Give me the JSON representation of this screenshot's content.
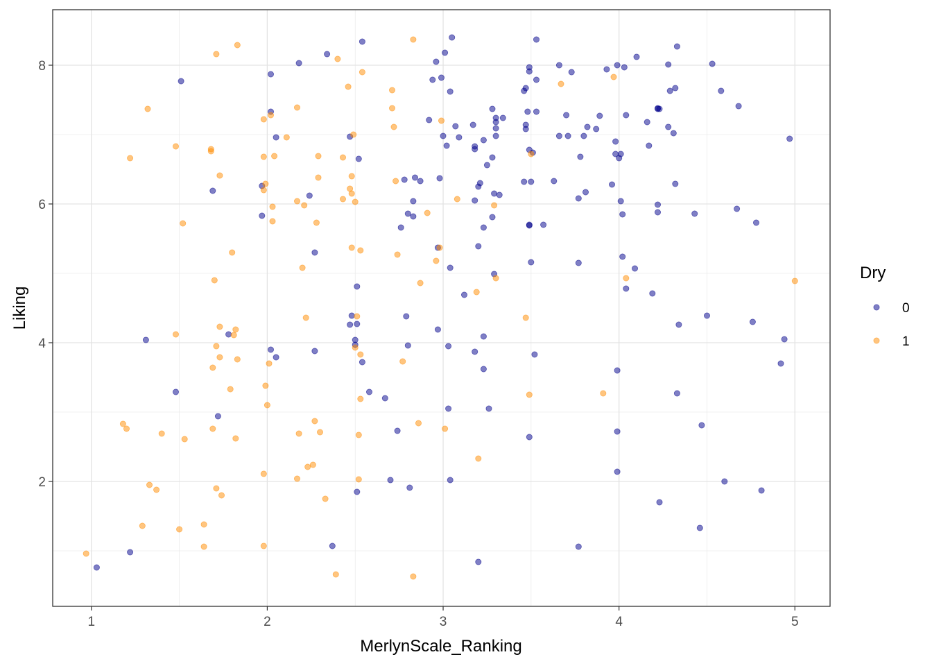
{
  "chart_data": {
    "type": "scatter",
    "xlabel": "MerlynScale_Ranking",
    "ylabel": "Liking",
    "xlim": [
      0.78,
      5.2
    ],
    "ylim": [
      0.2,
      8.8
    ],
    "x_ticks": [
      1,
      2,
      3,
      4,
      5
    ],
    "y_ticks": [
      2,
      4,
      6,
      8
    ],
    "grid": true,
    "legend": {
      "title": "Dry",
      "placement": "right",
      "entries": [
        {
          "label": "0",
          "color": "#00008B"
        },
        {
          "label": "1",
          "color": "#FF8C00"
        }
      ]
    },
    "series": [
      {
        "name": "0",
        "color": "#00008B",
        "points": [
          [
            1.03,
            0.76
          ],
          [
            1.22,
            0.98
          ],
          [
            1.31,
            4.04
          ],
          [
            1.48,
            3.29
          ],
          [
            1.51,
            7.77
          ],
          [
            1.69,
            6.19
          ],
          [
            1.72,
            2.94
          ],
          [
            1.78,
            4.12
          ],
          [
            1.97,
            6.26
          ],
          [
            1.97,
            5.83
          ],
          [
            2.02,
            7.87
          ],
          [
            2.02,
            7.33
          ],
          [
            2.02,
            3.9
          ],
          [
            2.05,
            3.79
          ],
          [
            2.05,
            6.96
          ],
          [
            2.18,
            8.03
          ],
          [
            2.24,
            6.12
          ],
          [
            2.27,
            5.3
          ],
          [
            2.27,
            3.88
          ],
          [
            2.34,
            8.16
          ],
          [
            2.37,
            1.07
          ],
          [
            2.47,
            6.97
          ],
          [
            2.47,
            4.26
          ],
          [
            2.48,
            4.39
          ],
          [
            2.5,
            4.04
          ],
          [
            2.5,
            3.97
          ],
          [
            2.51,
            4.81
          ],
          [
            2.51,
            4.27
          ],
          [
            2.51,
            1.85
          ],
          [
            2.52,
            6.65
          ],
          [
            2.54,
            8.34
          ],
          [
            2.54,
            3.72
          ],
          [
            2.58,
            3.29
          ],
          [
            2.67,
            3.2
          ],
          [
            2.7,
            2.02
          ],
          [
            2.74,
            2.73
          ],
          [
            2.76,
            5.66
          ],
          [
            2.78,
            6.35
          ],
          [
            2.79,
            4.38
          ],
          [
            2.8,
            5.86
          ],
          [
            2.8,
            3.96
          ],
          [
            2.81,
            1.91
          ],
          [
            2.83,
            6.04
          ],
          [
            2.83,
            5.82
          ],
          [
            2.84,
            6.38
          ],
          [
            2.87,
            6.33
          ],
          [
            2.92,
            7.21
          ],
          [
            2.94,
            7.79
          ],
          [
            2.96,
            8.05
          ],
          [
            2.97,
            5.37
          ],
          [
            2.97,
            4.19
          ],
          [
            2.98,
            6.37
          ],
          [
            2.99,
            7.82
          ],
          [
            3.0,
            6.98
          ],
          [
            3.01,
            8.18
          ],
          [
            3.02,
            6.84
          ],
          [
            3.03,
            3.05
          ],
          [
            3.03,
            3.95
          ],
          [
            3.04,
            7.62
          ],
          [
            3.04,
            2.02
          ],
          [
            3.04,
            5.08
          ],
          [
            3.05,
            8.4
          ],
          [
            3.07,
            7.12
          ],
          [
            3.09,
            6.96
          ],
          [
            3.12,
            4.69
          ],
          [
            3.17,
            7.14
          ],
          [
            3.18,
            6.79
          ],
          [
            3.18,
            6.83
          ],
          [
            3.18,
            6.05
          ],
          [
            3.18,
            3.87
          ],
          [
            3.2,
            5.39
          ],
          [
            3.2,
            6.25
          ],
          [
            3.21,
            6.3
          ],
          [
            3.2,
            0.84
          ],
          [
            3.23,
            5.66
          ],
          [
            3.23,
            6.92
          ],
          [
            3.23,
            3.62
          ],
          [
            3.23,
            4.09
          ],
          [
            3.25,
            6.56
          ],
          [
            3.26,
            3.05
          ],
          [
            3.28,
            7.37
          ],
          [
            3.28,
            5.81
          ],
          [
            3.28,
            6.67
          ],
          [
            3.29,
            4.99
          ],
          [
            3.29,
            6.15
          ],
          [
            3.3,
            7.18
          ],
          [
            3.3,
            7.24
          ],
          [
            3.3,
            7.09
          ],
          [
            3.3,
            6.98
          ],
          [
            3.32,
            6.13
          ],
          [
            3.34,
            7.24
          ],
          [
            3.46,
            7.63
          ],
          [
            3.46,
            6.32
          ],
          [
            3.47,
            7.67
          ],
          [
            3.47,
            7.14
          ],
          [
            3.47,
            7.08
          ],
          [
            3.48,
            7.33
          ],
          [
            3.49,
            7.97
          ],
          [
            3.49,
            7.91
          ],
          [
            3.49,
            6.78
          ],
          [
            3.49,
            5.7
          ],
          [
            3.49,
            5.69
          ],
          [
            3.49,
            2.64
          ],
          [
            3.5,
            6.32
          ],
          [
            3.5,
            5.16
          ],
          [
            3.51,
            6.74
          ],
          [
            3.52,
            3.83
          ],
          [
            3.53,
            8.37
          ],
          [
            3.53,
            7.79
          ],
          [
            3.53,
            7.33
          ],
          [
            3.57,
            5.7
          ],
          [
            3.63,
            6.33
          ],
          [
            3.66,
            8.0
          ],
          [
            3.66,
            6.98
          ],
          [
            3.7,
            7.28
          ],
          [
            3.71,
            6.98
          ],
          [
            3.73,
            7.9
          ],
          [
            3.77,
            6.08
          ],
          [
            3.77,
            5.15
          ],
          [
            3.77,
            1.06
          ],
          [
            3.78,
            6.68
          ],
          [
            3.8,
            6.98
          ],
          [
            3.81,
            6.17
          ],
          [
            3.82,
            7.11
          ],
          [
            3.87,
            7.08
          ],
          [
            3.89,
            7.27
          ],
          [
            3.93,
            7.94
          ],
          [
            3.96,
            6.28
          ],
          [
            3.98,
            6.9
          ],
          [
            3.98,
            6.72
          ],
          [
            3.99,
            8.0
          ],
          [
            3.99,
            3.6
          ],
          [
            3.99,
            2.72
          ],
          [
            3.99,
            2.14
          ],
          [
            4.0,
            6.66
          ],
          [
            4.01,
            6.72
          ],
          [
            4.01,
            6.04
          ],
          [
            4.02,
            5.85
          ],
          [
            4.02,
            5.24
          ],
          [
            4.03,
            7.97
          ],
          [
            4.04,
            7.28
          ],
          [
            4.04,
            4.78
          ],
          [
            4.09,
            5.07
          ],
          [
            4.1,
            8.12
          ],
          [
            4.16,
            7.18
          ],
          [
            4.17,
            6.84
          ],
          [
            4.19,
            4.71
          ],
          [
            4.22,
            5.99
          ],
          [
            4.22,
            5.88
          ],
          [
            4.22,
            7.38
          ],
          [
            4.22,
            7.37
          ],
          [
            4.23,
            7.37
          ],
          [
            4.23,
            1.7
          ],
          [
            4.28,
            8.01
          ],
          [
            4.28,
            7.11
          ],
          [
            4.29,
            7.63
          ],
          [
            4.31,
            7.02
          ],
          [
            4.32,
            7.67
          ],
          [
            4.32,
            6.29
          ],
          [
            4.33,
            8.27
          ],
          [
            4.33,
            3.27
          ],
          [
            4.34,
            4.26
          ],
          [
            4.43,
            5.86
          ],
          [
            4.46,
            1.33
          ],
          [
            4.47,
            2.81
          ],
          [
            4.5,
            4.39
          ],
          [
            4.53,
            8.02
          ],
          [
            4.58,
            7.63
          ],
          [
            4.6,
            2.0
          ],
          [
            4.67,
            5.93
          ],
          [
            4.68,
            7.41
          ],
          [
            4.76,
            4.3
          ],
          [
            4.78,
            5.73
          ],
          [
            4.81,
            1.87
          ],
          [
            4.92,
            3.7
          ],
          [
            4.94,
            4.05
          ],
          [
            4.97,
            6.94
          ]
        ]
      },
      {
        "name": "1",
        "color": "#FF8C00",
        "points": [
          [
            0.97,
            0.96
          ],
          [
            1.18,
            2.83
          ],
          [
            1.2,
            2.76
          ],
          [
            1.22,
            6.66
          ],
          [
            1.29,
            1.36
          ],
          [
            1.32,
            7.37
          ],
          [
            1.33,
            1.95
          ],
          [
            1.37,
            1.88
          ],
          [
            1.4,
            2.69
          ],
          [
            1.48,
            6.83
          ],
          [
            1.48,
            4.12
          ],
          [
            1.5,
            1.31
          ],
          [
            1.52,
            5.72
          ],
          [
            1.53,
            2.61
          ],
          [
            1.64,
            1.38
          ],
          [
            1.64,
            1.06
          ],
          [
            1.68,
            6.79
          ],
          [
            1.68,
            6.76
          ],
          [
            1.69,
            2.76
          ],
          [
            1.69,
            3.64
          ],
          [
            1.7,
            4.9
          ],
          [
            1.71,
            1.9
          ],
          [
            1.71,
            3.95
          ],
          [
            1.71,
            8.16
          ],
          [
            1.73,
            6.41
          ],
          [
            1.73,
            3.79
          ],
          [
            1.73,
            4.23
          ],
          [
            1.74,
            1.8
          ],
          [
            1.79,
            3.33
          ],
          [
            1.8,
            5.3
          ],
          [
            1.81,
            4.11
          ],
          [
            1.82,
            4.19
          ],
          [
            1.82,
            2.62
          ],
          [
            1.83,
            8.29
          ],
          [
            1.83,
            3.76
          ],
          [
            1.98,
            7.22
          ],
          [
            1.98,
            6.68
          ],
          [
            1.98,
            6.2
          ],
          [
            1.98,
            2.11
          ],
          [
            1.98,
            1.07
          ],
          [
            1.99,
            6.29
          ],
          [
            1.99,
            3.38
          ],
          [
            2.0,
            3.1
          ],
          [
            2.01,
            3.7
          ],
          [
            2.02,
            7.28
          ],
          [
            2.03,
            5.96
          ],
          [
            2.03,
            5.75
          ],
          [
            2.04,
            6.69
          ],
          [
            2.11,
            6.96
          ],
          [
            2.17,
            7.39
          ],
          [
            2.17,
            6.04
          ],
          [
            2.17,
            2.04
          ],
          [
            2.18,
            2.69
          ],
          [
            2.2,
            5.08
          ],
          [
            2.21,
            5.98
          ],
          [
            2.22,
            4.36
          ],
          [
            2.23,
            2.21
          ],
          [
            2.26,
            2.24
          ],
          [
            2.27,
            2.87
          ],
          [
            2.28,
            5.73
          ],
          [
            2.29,
            6.38
          ],
          [
            2.29,
            6.69
          ],
          [
            2.3,
            2.71
          ],
          [
            2.33,
            1.75
          ],
          [
            2.39,
            0.66
          ],
          [
            2.4,
            8.09
          ],
          [
            2.43,
            6.67
          ],
          [
            2.43,
            6.07
          ],
          [
            2.46,
            7.69
          ],
          [
            2.47,
            6.22
          ],
          [
            2.48,
            6.4
          ],
          [
            2.48,
            6.15
          ],
          [
            2.48,
            5.37
          ],
          [
            2.49,
            7.0
          ],
          [
            2.5,
            6.03
          ],
          [
            2.5,
            3.93
          ],
          [
            2.51,
            4.38
          ],
          [
            2.52,
            2.67
          ],
          [
            2.52,
            2.03
          ],
          [
            2.53,
            5.33
          ],
          [
            2.53,
            3.83
          ],
          [
            2.53,
            3.19
          ],
          [
            2.54,
            7.9
          ],
          [
            2.71,
            7.64
          ],
          [
            2.71,
            7.38
          ],
          [
            2.72,
            7.11
          ],
          [
            2.73,
            6.33
          ],
          [
            2.74,
            5.27
          ],
          [
            2.77,
            3.73
          ],
          [
            2.83,
            8.37
          ],
          [
            2.83,
            0.63
          ],
          [
            2.86,
            2.84
          ],
          [
            2.87,
            4.86
          ],
          [
            2.91,
            5.87
          ],
          [
            2.96,
            5.18
          ],
          [
            2.98,
            5.37
          ],
          [
            2.99,
            7.2
          ],
          [
            3.01,
            2.76
          ],
          [
            3.08,
            6.07
          ],
          [
            3.19,
            4.73
          ],
          [
            3.2,
            2.33
          ],
          [
            3.29,
            5.98
          ],
          [
            3.3,
            4.93
          ],
          [
            3.47,
            4.36
          ],
          [
            3.49,
            3.25
          ],
          [
            3.5,
            6.72
          ],
          [
            3.67,
            7.73
          ],
          [
            3.91,
            3.27
          ],
          [
            3.97,
            7.83
          ],
          [
            4.04,
            4.93
          ],
          [
            5.0,
            4.89
          ]
        ]
      }
    ]
  }
}
